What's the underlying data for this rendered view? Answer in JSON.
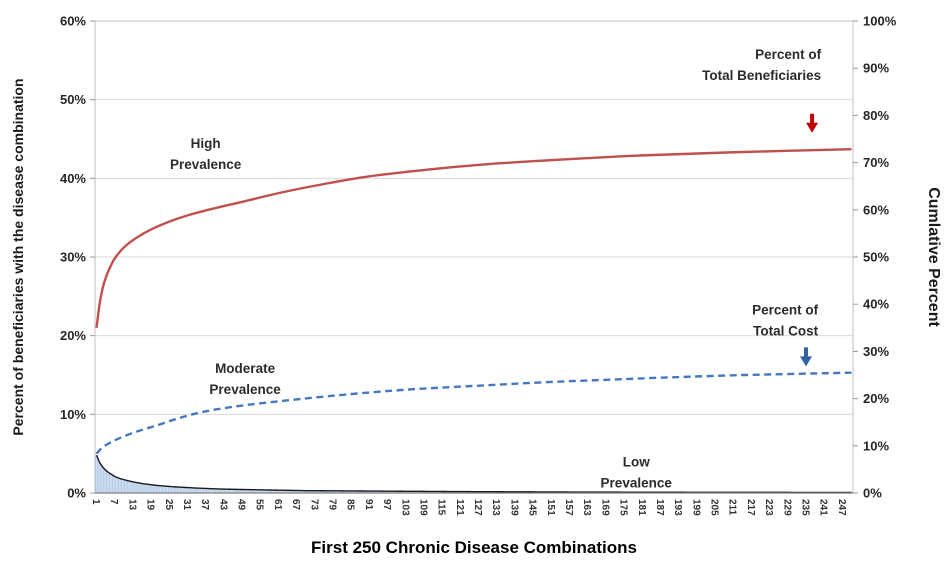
{
  "chart_data": {
    "type": "line",
    "title": "",
    "xlabel": "First 250 Chronic Disease Combinations",
    "ylabel_left": "Percent of beneficiaries with the disease combination",
    "ylabel_right": "Cumlative Percent",
    "notes": "Combo chart: light-blue bars = per-combination prevalence (left axis); red solid and blue dashed lines are cumulative series read against the right axis (0-100%) which spans the same height as the left axis (0-60%). All point values below are stored in left-axis percent units.",
    "x_axis": {
      "first": 1,
      "last": 250,
      "label_step": 6,
      "tick_labels": [
        "1",
        "7",
        "13",
        "19",
        "25",
        "31",
        "37",
        "43",
        "49",
        "55",
        "61",
        "67",
        "73",
        "79",
        "85",
        "91",
        "97",
        "103",
        "109",
        "115",
        "121",
        "127",
        "133",
        "139",
        "145",
        "151",
        "157",
        "163",
        "169",
        "175",
        "181",
        "187",
        "193",
        "199",
        "205",
        "211",
        "217",
        "223",
        "229",
        "235",
        "241",
        "247"
      ]
    },
    "left_axis": {
      "min": 0,
      "max": 60,
      "step": 10,
      "tick_labels": [
        "0%",
        "10%",
        "20%",
        "30%",
        "40%",
        "50%",
        "60%"
      ]
    },
    "right_axis": {
      "min": 0,
      "max": 100,
      "step": 10,
      "tick_labels": [
        "0%",
        "10%",
        "20%",
        "30%",
        "40%",
        "50%",
        "60%",
        "70%",
        "80%",
        "90%",
        "100%"
      ]
    },
    "grid": {
      "color": "#D9D9D9",
      "horizontal_only": true
    },
    "plot_border_color": "#C0C0C0",
    "axis_line_color": "#7F7F7F",
    "series": [
      {
        "id": "cumulative-beneficiaries",
        "name": "Percent of Total Beneficiaries",
        "type": "line",
        "line_style": "solid",
        "color": "#C0504D",
        "right_axis_start_pct": 35,
        "right_axis_end_pct": 72.8,
        "points": [
          [
            1,
            21
          ],
          [
            2,
            24
          ],
          [
            3,
            26
          ],
          [
            4,
            27.3
          ],
          [
            5,
            28.3
          ],
          [
            7,
            29.8
          ],
          [
            10,
            31.2
          ],
          [
            14,
            32.4
          ],
          [
            19,
            33.5
          ],
          [
            25,
            34.5
          ],
          [
            32,
            35.4
          ],
          [
            40,
            36.2
          ],
          [
            50,
            37.1
          ],
          [
            62,
            38.2
          ],
          [
            75,
            39.2
          ],
          [
            90,
            40.2
          ],
          [
            110,
            41.1
          ],
          [
            130,
            41.8
          ],
          [
            155,
            42.4
          ],
          [
            180,
            42.9
          ],
          [
            210,
            43.3
          ],
          [
            250,
            43.7
          ]
        ]
      },
      {
        "id": "cumulative-cost",
        "name": "Percent of Total Cost",
        "type": "line",
        "line_style": "dashed",
        "color": "#4678BE",
        "right_axis_start_pct": 8.3,
        "right_axis_end_pct": 25.5,
        "points": [
          [
            1,
            5
          ],
          [
            3,
            5.8
          ],
          [
            6,
            6.5
          ],
          [
            10,
            7.2
          ],
          [
            15,
            7.9
          ],
          [
            21,
            8.6
          ],
          [
            28,
            9.5
          ],
          [
            36,
            10.3
          ],
          [
            45,
            10.9
          ],
          [
            55,
            11.4
          ],
          [
            67,
            11.9
          ],
          [
            80,
            12.4
          ],
          [
            95,
            12.9
          ],
          [
            110,
            13.3
          ],
          [
            130,
            13.7
          ],
          [
            150,
            14.1
          ],
          [
            170,
            14.4
          ],
          [
            190,
            14.7
          ],
          [
            215,
            15.0
          ],
          [
            250,
            15.3
          ]
        ]
      },
      {
        "id": "per-combination-prevalence",
        "name": "Percent of beneficiaries with the disease combination",
        "type": "bar",
        "fill": "#C9DAF0",
        "stroke": "#93B3D9",
        "top_line_color": "#1a1a1a",
        "envelope_points": [
          [
            1,
            4.8
          ],
          [
            2,
            3.9
          ],
          [
            3,
            3.3
          ],
          [
            4,
            2.9
          ],
          [
            5,
            2.6
          ],
          [
            7,
            2.1
          ],
          [
            9,
            1.8
          ],
          [
            12,
            1.5
          ],
          [
            16,
            1.2
          ],
          [
            20,
            1.0
          ],
          [
            26,
            0.8
          ],
          [
            33,
            0.65
          ],
          [
            42,
            0.5
          ],
          [
            55,
            0.4
          ],
          [
            70,
            0.3
          ],
          [
            90,
            0.25
          ],
          [
            120,
            0.18
          ],
          [
            160,
            0.12
          ],
          [
            200,
            0.09
          ],
          [
            250,
            0.07
          ]
        ]
      }
    ],
    "annotations": [
      {
        "id": "high-prevalence-label",
        "lines": [
          "High",
          "Prevalence"
        ],
        "x": 37,
        "y": 43.1,
        "align": "middle"
      },
      {
        "id": "moderate-prevalence-label",
        "lines": [
          "Moderate",
          "Prevalence"
        ],
        "x": 50,
        "y": 14.5,
        "align": "middle"
      },
      {
        "id": "low-prevalence-label",
        "lines": [
          "Low",
          "Prevalence"
        ],
        "x": 179,
        "y": 2.6,
        "align": "middle"
      },
      {
        "id": "beneficiaries-series-label",
        "lines": [
          "Percent of",
          "Total Beneficiaries"
        ],
        "x": 240,
        "y": 54.4,
        "align": "end"
      },
      {
        "id": "cost-series-label",
        "lines": [
          "Percent of",
          "Total Cost"
        ],
        "x": 239,
        "y": 21.9,
        "align": "end"
      }
    ],
    "arrows": [
      {
        "id": "beneficiaries-arrow",
        "color": "#C00000",
        "x": 237,
        "y": 47.0
      },
      {
        "id": "cost-arrow",
        "color": "#31619F",
        "x": 235,
        "y": 17.3
      }
    ]
  }
}
